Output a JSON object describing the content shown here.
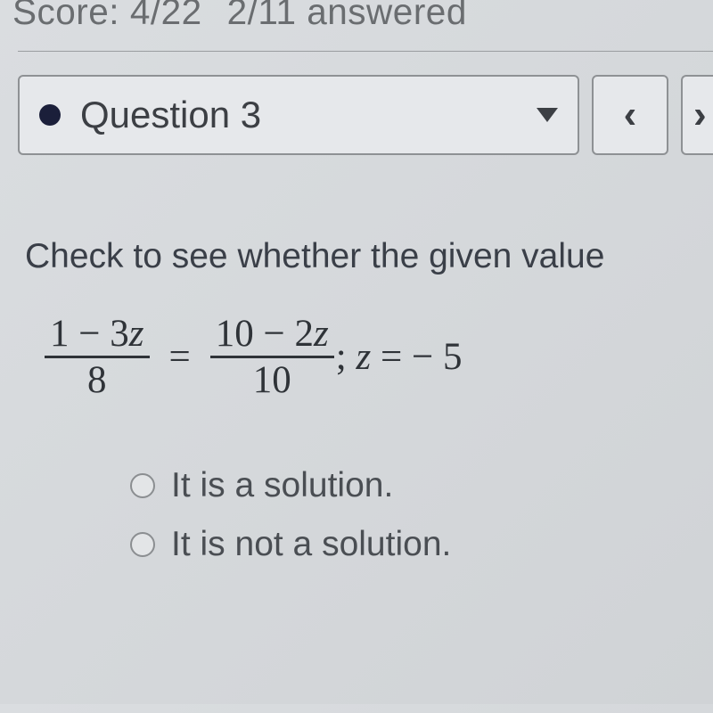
{
  "header": {
    "score_label": "Score:",
    "score_value": "4/22",
    "answered_value": "2/11",
    "answered_label": "answered"
  },
  "nav": {
    "question_label": "Question 3",
    "prev_glyph": "‹",
    "next_glyph": "›"
  },
  "prompt": "Check to see whether the given value",
  "equation": {
    "frac1_num": "1 − 3",
    "frac1_num_var": "z",
    "frac1_den": "8",
    "op": "=",
    "frac2_num": "10 − 2",
    "frac2_num_var": "z",
    "frac2_den": "10",
    "tail_prefix": "; ",
    "tail_var": "z",
    "tail_eq": " = − 5"
  },
  "options": [
    "It is a solution.",
    "It is not a solution."
  ]
}
